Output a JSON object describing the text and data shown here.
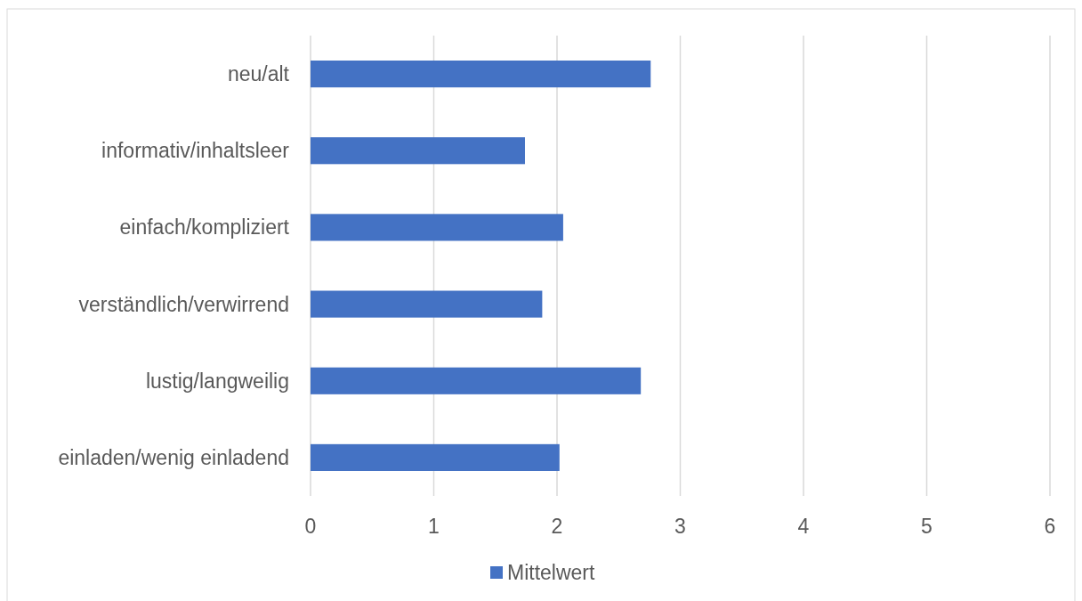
{
  "chart_data": {
    "type": "bar",
    "orientation": "horizontal",
    "categories": [
      "neu/alt",
      "informativ/inhaltsleer",
      "einfach/kompliziert",
      "verständlich/verwirrend",
      "lustig/langweilig",
      "einladen/wenig einladend"
    ],
    "series": [
      {
        "name": "Mittelwert",
        "color": "#4472c4",
        "values": [
          2.76,
          1.74,
          2.05,
          1.88,
          2.68,
          2.02
        ]
      }
    ],
    "xlim": [
      0,
      6
    ],
    "xticks": [
      0,
      1,
      2,
      3,
      4,
      5,
      6
    ],
    "grid": "x",
    "legend": "bottom"
  }
}
